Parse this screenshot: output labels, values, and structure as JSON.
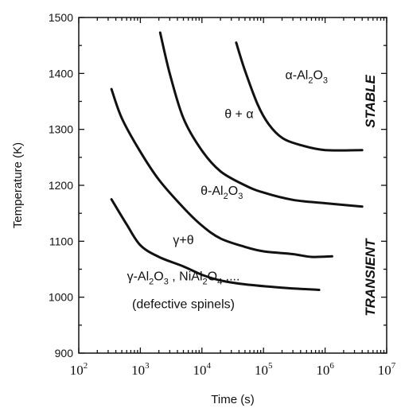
{
  "chart_data": {
    "type": "line",
    "xlabel": "Time (s)",
    "ylabel": "Temperature (K)",
    "xscale": "log",
    "xlim": [
      100,
      10000000
    ],
    "ylim": [
      900,
      1500
    ],
    "grid": false,
    "x_tick_labels": [
      {
        "base": "10",
        "exp": "2",
        "value": 100
      },
      {
        "base": "10",
        "exp": "3",
        "value": 1000
      },
      {
        "base": "10",
        "exp": "4",
        "value": 10000
      },
      {
        "base": "10",
        "exp": "5",
        "value": 100000
      },
      {
        "base": "10",
        "exp": "6",
        "value": 1000000
      },
      {
        "base": "10",
        "exp": "7",
        "value": 10000000
      }
    ],
    "y_ticks": [
      900,
      1000,
      1100,
      1200,
      1300,
      1400,
      1500
    ],
    "series": [
      {
        "points": [
          [
            340,
            1175
          ],
          [
            600,
            1130
          ],
          [
            1000,
            1093
          ],
          [
            2000,
            1072
          ],
          [
            5000,
            1055
          ],
          [
            10000,
            1040
          ],
          [
            20000,
            1030
          ],
          [
            50000,
            1023
          ],
          [
            200000,
            1017
          ],
          [
            800000,
            1013
          ]
        ]
      },
      {
        "points": [
          [
            340,
            1372
          ],
          [
            500,
            1320
          ],
          [
            1000,
            1260
          ],
          [
            2000,
            1210
          ],
          [
            5000,
            1160
          ],
          [
            10000,
            1128
          ],
          [
            20000,
            1105
          ],
          [
            50000,
            1090
          ],
          [
            100000,
            1082
          ],
          [
            300000,
            1077
          ],
          [
            600000,
            1072
          ],
          [
            1300000,
            1073
          ]
        ]
      },
      {
        "points": [
          [
            2100,
            1473
          ],
          [
            3000,
            1400
          ],
          [
            5000,
            1320
          ],
          [
            10000,
            1262
          ],
          [
            20000,
            1225
          ],
          [
            50000,
            1200
          ],
          [
            100000,
            1187
          ],
          [
            300000,
            1174
          ],
          [
            1000000,
            1168
          ],
          [
            4000000,
            1162
          ]
        ]
      },
      {
        "points": [
          [
            36000,
            1455
          ],
          [
            50000,
            1405
          ],
          [
            80000,
            1345
          ],
          [
            120000,
            1310
          ],
          [
            200000,
            1285
          ],
          [
            400000,
            1272
          ],
          [
            1000000,
            1263
          ],
          [
            4000000,
            1263
          ]
        ]
      }
    ],
    "annotations": [
      {
        "id": "alpha",
        "parts": [
          {
            "t": "α-Al"
          },
          {
            "t": "2",
            "sub": true
          },
          {
            "t": "O"
          },
          {
            "t": "3",
            "sub": true
          }
        ],
        "x": 500000,
        "y": 1390
      },
      {
        "id": "theta-alpha",
        "parts": [
          {
            "t": "θ + α"
          }
        ],
        "x": 40000,
        "y": 1320
      },
      {
        "id": "theta",
        "parts": [
          {
            "t": "θ-Al"
          },
          {
            "t": "2",
            "sub": true
          },
          {
            "t": "O"
          },
          {
            "t": "3",
            "sub": true
          }
        ],
        "x": 21000,
        "y": 1183
      },
      {
        "id": "gamma-theta",
        "parts": [
          {
            "t": "γ+θ"
          }
        ],
        "x": 5000,
        "y": 1095
      },
      {
        "id": "gamma",
        "parts": [
          {
            "t": "γ-Al"
          },
          {
            "t": "2",
            "sub": true
          },
          {
            "t": "O"
          },
          {
            "t": "3",
            "sub": true
          },
          {
            "t": " , NiAl"
          },
          {
            "t": "2",
            "sub": true
          },
          {
            "t": "O"
          },
          {
            "t": "4",
            "sub": true
          },
          {
            "t": " ,..."
          }
        ],
        "x": 5000,
        "y": 1030
      },
      {
        "id": "spinels",
        "parts": [
          {
            "t": "(defective spinels)"
          }
        ],
        "x": 5000,
        "y": 980
      }
    ],
    "side_labels": [
      {
        "id": "stable",
        "text": "STABLE",
        "y_center": 1350
      },
      {
        "id": "transient",
        "text": "TRANSIENT",
        "y_center": 1035
      }
    ]
  }
}
